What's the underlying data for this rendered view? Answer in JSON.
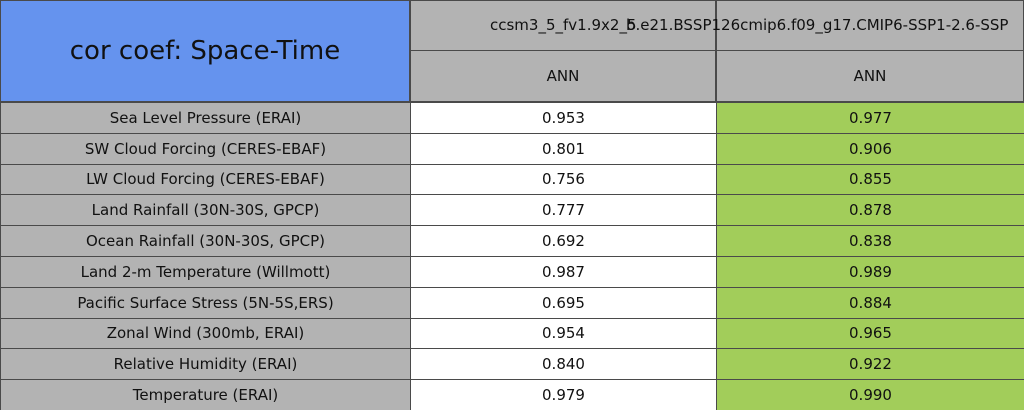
{
  "header": {
    "title": "cor coef: Space-Time"
  },
  "columns": [
    {
      "case": "ccsm3_5_fv1.9x2_5",
      "season": "ANN"
    },
    {
      "case": "b.e21.BSSP126cmip6.f09_g17.CMIP6-SSP1-2.6-SSP",
      "season": "ANN"
    }
  ],
  "table": {
    "rows": [
      {
        "label": "Sea Level Pressure (ERAI)",
        "values": [
          "0.953",
          "0.977"
        ]
      },
      {
        "label": "SW Cloud Forcing (CERES-EBAF)",
        "values": [
          "0.801",
          "0.906"
        ]
      },
      {
        "label": "LW Cloud Forcing (CERES-EBAF)",
        "values": [
          "0.756",
          "0.855"
        ]
      },
      {
        "label": "Land Rainfall (30N-30S, GPCP)",
        "values": [
          "0.777",
          "0.878"
        ]
      },
      {
        "label": "Ocean Rainfall (30N-30S, GPCP)",
        "values": [
          "0.692",
          "0.838"
        ]
      },
      {
        "label": "Land 2-m Temperature (Willmott)",
        "values": [
          "0.987",
          "0.989"
        ]
      },
      {
        "label": "Pacific Surface Stress (5N-5S,ERS)",
        "values": [
          "0.695",
          "0.884"
        ]
      },
      {
        "label": "Zonal Wind (300mb, ERAI)",
        "values": [
          "0.954",
          "0.965"
        ]
      },
      {
        "label": "Relative Humidity (ERAI)",
        "values": [
          "0.840",
          "0.922"
        ]
      },
      {
        "label": "Temperature (ERAI)",
        "values": [
          "0.979",
          "0.990"
        ]
      }
    ]
  }
}
